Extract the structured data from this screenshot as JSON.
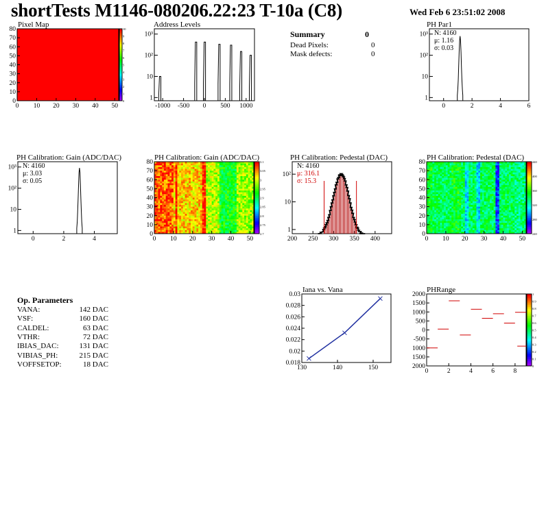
{
  "header": {
    "title": "shortTests M1146-080206.22:23 T-10a (C8)",
    "date": "Wed Feb  6 23:51:02 2008"
  },
  "summary": {
    "title": "Summary",
    "title_value": "0",
    "rows": [
      {
        "label": "Dead Pixels:",
        "value": "0"
      },
      {
        "label": "Mask defects:",
        "value": "0"
      }
    ]
  },
  "op_params": {
    "title": "Op. Parameters",
    "rows": [
      {
        "label": "VANA:",
        "value": "142 DAC"
      },
      {
        "label": "VSF:",
        "value": "160 DAC"
      },
      {
        "label": "CALDEL:",
        "value": "63 DAC"
      },
      {
        "label": "VTHR:",
        "value": "72 DAC"
      },
      {
        "label": "IBIAS_DAC:",
        "value": "131 DAC"
      },
      {
        "label": "VIBIAS_PH:",
        "value": "215 DAC"
      },
      {
        "label": "VOFFSETOP:",
        "value": "18 DAC"
      }
    ]
  },
  "chart_data": [
    {
      "id": "pixel-map",
      "type": "heatmap",
      "title": "Pixel Map",
      "xlim": [
        0,
        52
      ],
      "ylim": [
        0,
        80
      ],
      "x_ticks": [
        0,
        10,
        20,
        30,
        40,
        50
      ],
      "y_ticks": [
        0,
        10,
        20,
        30,
        40,
        50,
        60,
        70,
        80
      ],
      "fill_color": "#ff0000",
      "value": 10,
      "z_ticks": [
        "10",
        "9",
        "8",
        "7",
        "6",
        "5",
        "4",
        "3",
        "2",
        "1",
        "0"
      ]
    },
    {
      "id": "address-levels",
      "type": "bar",
      "title": "Address Levels",
      "xlim": [
        -1200,
        1200
      ],
      "log_y": true,
      "y_ticks": [
        "1",
        "10",
        "10²",
        "10³"
      ],
      "x_ticks": [
        -1000,
        -500,
        0,
        500,
        1000
      ],
      "peaks": [
        {
          "x": -1060,
          "height": 10
        },
        {
          "x": -200,
          "height": 420
        },
        {
          "x": 10,
          "height": 420
        },
        {
          "x": 360,
          "height": 330
        },
        {
          "x": 640,
          "height": 300
        },
        {
          "x": 880,
          "height": 150
        },
        {
          "x": 1110,
          "height": 100
        }
      ]
    },
    {
      "id": "ph-par1",
      "type": "bar",
      "title": "PH Par1",
      "xlim": [
        -1,
        6
      ],
      "log_y": true,
      "y_ticks": [
        "1",
        "10",
        "10²",
        "10³"
      ],
      "x_ticks": [
        0,
        2,
        4,
        6
      ],
      "stats": {
        "N": "N: 4160",
        "mu": "μ: 1.16",
        "sigma": "σ: 0.03"
      },
      "peak_x": 1.16,
      "peak_height": 800
    },
    {
      "id": "gain-1d",
      "type": "bar",
      "title": "PH Calibration: Gain (ADC/DAC)",
      "xlim": [
        -1,
        5.5
      ],
      "log_y": true,
      "y_ticks": [
        "1",
        "10",
        "10²",
        "10³"
      ],
      "x_ticks": [
        0,
        2,
        4
      ],
      "stats": {
        "N": "N: 4160",
        "mu": "μ: 3.03",
        "sigma": "σ: 0.05"
      },
      "peak_x": 3.03,
      "peak_height": 900
    },
    {
      "id": "gain-map",
      "type": "heatmap",
      "title": "PH Calibration: Gain (ADC/DAC)",
      "xlim": [
        0,
        52
      ],
      "ylim": [
        0,
        80
      ],
      "x_ticks": [
        0,
        10,
        20,
        30,
        40,
        50
      ],
      "y_ticks": [
        0,
        10,
        20,
        30,
        40,
        50,
        60,
        70,
        80
      ],
      "z_ticks": [
        "3.1",
        "3.05",
        "3",
        "2.95",
        "2.9",
        "2.85",
        "2.8",
        "2.75",
        "2.7"
      ]
    },
    {
      "id": "pedestal-1d",
      "type": "bar",
      "title": "PH Calibration: Pedestal (DAC)",
      "xlim": [
        200,
        440
      ],
      "log_y": true,
      "y_ticks": [
        "1",
        "10",
        "10²"
      ],
      "x_ticks": [
        200,
        250,
        300,
        350,
        400
      ],
      "stats": {
        "N": "N: 4160",
        "mu": "μ: 316.1",
        "sigma": "σ: 15.3"
      },
      "mean": 316.1,
      "sigma": 15.3,
      "peak_height": 120,
      "markers": [
        277,
        355
      ]
    },
    {
      "id": "pedestal-map",
      "type": "heatmap",
      "title": "PH Calibration: Pedestal (DAC)",
      "xlim": [
        0,
        52
      ],
      "ylim": [
        0,
        80
      ],
      "x_ticks": [
        0,
        10,
        20,
        30,
        40,
        50
      ],
      "y_ticks": [
        0,
        10,
        20,
        30,
        40,
        50,
        60,
        70,
        80
      ],
      "z_ticks": [
        "440",
        "400",
        "360",
        "320",
        "280",
        "240"
      ]
    },
    {
      "id": "iana-vana",
      "type": "line",
      "title": "Iana vs. Vana",
      "xlim": [
        130,
        155
      ],
      "ylim": [
        0.018,
        0.03
      ],
      "x_ticks": [
        130,
        140,
        150
      ],
      "y_ticks": [
        "0.018",
        "0.02",
        "0.022",
        "0.024",
        "0.026",
        "0.028",
        "0.03"
      ],
      "x": [
        132,
        142,
        152
      ],
      "y": [
        0.0187,
        0.0232,
        0.0292
      ]
    },
    {
      "id": "ph-range",
      "type": "scatter",
      "title": "PHRange",
      "xlim": [
        0,
        9
      ],
      "ylim": [
        -2000,
        2000
      ],
      "x_ticks": [
        0,
        2,
        4,
        6,
        8
      ],
      "y_ticks": [
        "2000",
        "1500",
        "1000",
        "500",
        "0",
        "-500",
        "1000",
        "1500",
        "2000"
      ],
      "z_ticks": [
        "1",
        "0.9",
        "0.8",
        "0.7",
        "0.6",
        "0.5",
        "0.4",
        "0.3",
        "0.2",
        "0.1",
        "0"
      ],
      "segments": [
        {
          "x": 0.5,
          "y": -1000
        },
        {
          "x": 1.5,
          "y": 50
        },
        {
          "x": 2.5,
          "y": 1620
        },
        {
          "x": 3.5,
          "y": -280
        },
        {
          "x": 4.5,
          "y": 1150
        },
        {
          "x": 5.5,
          "y": 650
        },
        {
          "x": 6.5,
          "y": 900
        },
        {
          "x": 7.5,
          "y": 380
        },
        {
          "x": 8.5,
          "y": 980
        },
        {
          "x": 8.7,
          "y": -900
        }
      ]
    }
  ]
}
